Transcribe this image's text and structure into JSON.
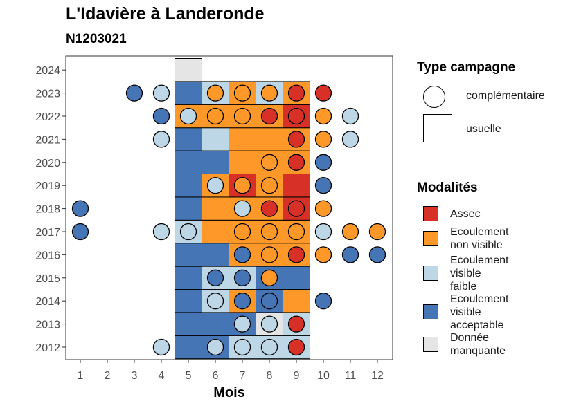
{
  "header": {
    "title": "L'Idavière à Landeronde",
    "subtitle": "N1203021"
  },
  "chart_data": {
    "type": "heatmap",
    "xlabel": "Mois",
    "ylabel": "",
    "x": [
      1,
      2,
      3,
      4,
      5,
      6,
      7,
      8,
      9,
      10,
      11,
      12
    ],
    "y": [
      2012,
      2013,
      2014,
      2015,
      2016,
      2017,
      2018,
      2019,
      2020,
      2021,
      2022,
      2023,
      2024
    ],
    "colors": {
      "assec": "#D73027",
      "ecoulement_non_visible": "#FE9929",
      "ecoulement_visible_faible": "#BDD7E7",
      "ecoulement_visible_acceptable": "#4575B4",
      "donnee_manquante": "#E5E5E5"
    },
    "usuelle": [
      {
        "year": 2012,
        "month": 5,
        "value": "ecoulement_visible_acceptable"
      },
      {
        "year": 2012,
        "month": 6,
        "value": "ecoulement_visible_acceptable"
      },
      {
        "year": 2012,
        "month": 7,
        "value": "ecoulement_visible_faible"
      },
      {
        "year": 2012,
        "month": 8,
        "value": "ecoulement_visible_faible"
      },
      {
        "year": 2012,
        "month": 9,
        "value": "ecoulement_visible_faible"
      },
      {
        "year": 2013,
        "month": 5,
        "value": "ecoulement_visible_acceptable"
      },
      {
        "year": 2013,
        "month": 6,
        "value": "ecoulement_visible_acceptable"
      },
      {
        "year": 2013,
        "month": 7,
        "value": "ecoulement_visible_acceptable"
      },
      {
        "year": 2013,
        "month": 8,
        "value": "donnee_manquante"
      },
      {
        "year": 2013,
        "month": 9,
        "value": "ecoulement_visible_faible"
      },
      {
        "year": 2014,
        "month": 5,
        "value": "ecoulement_visible_acceptable"
      },
      {
        "year": 2014,
        "month": 6,
        "value": "ecoulement_visible_faible"
      },
      {
        "year": 2014,
        "month": 7,
        "value": "ecoulement_non_visible"
      },
      {
        "year": 2014,
        "month": 8,
        "value": "ecoulement_visible_acceptable"
      },
      {
        "year": 2014,
        "month": 9,
        "value": "ecoulement_non_visible"
      },
      {
        "year": 2015,
        "month": 5,
        "value": "ecoulement_visible_acceptable"
      },
      {
        "year": 2015,
        "month": 6,
        "value": "ecoulement_visible_faible"
      },
      {
        "year": 2015,
        "month": 7,
        "value": "ecoulement_visible_faible"
      },
      {
        "year": 2015,
        "month": 8,
        "value": "ecoulement_visible_acceptable"
      },
      {
        "year": 2015,
        "month": 9,
        "value": "ecoulement_visible_acceptable"
      },
      {
        "year": 2016,
        "month": 5,
        "value": "ecoulement_visible_acceptable"
      },
      {
        "year": 2016,
        "month": 6,
        "value": "ecoulement_visible_acceptable"
      },
      {
        "year": 2016,
        "month": 7,
        "value": "ecoulement_non_visible"
      },
      {
        "year": 2016,
        "month": 8,
        "value": "ecoulement_non_visible"
      },
      {
        "year": 2016,
        "month": 9,
        "value": "ecoulement_non_visible"
      },
      {
        "year": 2017,
        "month": 5,
        "value": "ecoulement_visible_faible"
      },
      {
        "year": 2017,
        "month": 6,
        "value": "ecoulement_non_visible"
      },
      {
        "year": 2017,
        "month": 7,
        "value": "ecoulement_non_visible"
      },
      {
        "year": 2017,
        "month": 8,
        "value": "ecoulement_non_visible"
      },
      {
        "year": 2017,
        "month": 9,
        "value": "ecoulement_non_visible"
      },
      {
        "year": 2018,
        "month": 5,
        "value": "ecoulement_visible_acceptable"
      },
      {
        "year": 2018,
        "month": 6,
        "value": "ecoulement_non_visible"
      },
      {
        "year": 2018,
        "month": 7,
        "value": "ecoulement_non_visible"
      },
      {
        "year": 2018,
        "month": 8,
        "value": "ecoulement_non_visible"
      },
      {
        "year": 2018,
        "month": 9,
        "value": "assec"
      },
      {
        "year": 2019,
        "month": 5,
        "value": "ecoulement_visible_acceptable"
      },
      {
        "year": 2019,
        "month": 6,
        "value": "ecoulement_non_visible"
      },
      {
        "year": 2019,
        "month": 7,
        "value": "assec"
      },
      {
        "year": 2019,
        "month": 8,
        "value": "ecoulement_non_visible"
      },
      {
        "year": 2019,
        "month": 9,
        "value": "assec"
      },
      {
        "year": 2020,
        "month": 5,
        "value": "ecoulement_visible_acceptable"
      },
      {
        "year": 2020,
        "month": 6,
        "value": "ecoulement_visible_acceptable"
      },
      {
        "year": 2020,
        "month": 7,
        "value": "ecoulement_non_visible"
      },
      {
        "year": 2020,
        "month": 8,
        "value": "ecoulement_non_visible"
      },
      {
        "year": 2020,
        "month": 9,
        "value": "ecoulement_non_visible"
      },
      {
        "year": 2021,
        "month": 5,
        "value": "ecoulement_visible_acceptable"
      },
      {
        "year": 2021,
        "month": 6,
        "value": "ecoulement_visible_faible"
      },
      {
        "year": 2021,
        "month": 7,
        "value": "ecoulement_non_visible"
      },
      {
        "year": 2021,
        "month": 8,
        "value": "ecoulement_non_visible"
      },
      {
        "year": 2021,
        "month": 9,
        "value": "ecoulement_non_visible"
      },
      {
        "year": 2022,
        "month": 5,
        "value": "ecoulement_non_visible"
      },
      {
        "year": 2022,
        "month": 6,
        "value": "ecoulement_non_visible"
      },
      {
        "year": 2022,
        "month": 7,
        "value": "ecoulement_non_visible"
      },
      {
        "year": 2022,
        "month": 8,
        "value": "ecoulement_non_visible"
      },
      {
        "year": 2022,
        "month": 9,
        "value": "assec"
      },
      {
        "year": 2023,
        "month": 5,
        "value": "ecoulement_visible_acceptable"
      },
      {
        "year": 2023,
        "month": 6,
        "value": "ecoulement_visible_faible"
      },
      {
        "year": 2023,
        "month": 7,
        "value": "ecoulement_non_visible"
      },
      {
        "year": 2023,
        "month": 8,
        "value": "ecoulement_visible_faible"
      },
      {
        "year": 2023,
        "month": 9,
        "value": "ecoulement_non_visible"
      },
      {
        "year": 2024,
        "month": 5,
        "value": "donnee_manquante"
      }
    ],
    "complementaire": [
      {
        "year": 2012,
        "month": 4,
        "value": "ecoulement_visible_faible"
      },
      {
        "year": 2012,
        "month": 6,
        "value": "ecoulement_visible_faible"
      },
      {
        "year": 2012,
        "month": 7,
        "value": "ecoulement_visible_faible"
      },
      {
        "year": 2012,
        "month": 8,
        "value": "ecoulement_visible_faible"
      },
      {
        "year": 2012,
        "month": 9,
        "value": "assec"
      },
      {
        "year": 2013,
        "month": 7,
        "value": "ecoulement_visible_faible"
      },
      {
        "year": 2013,
        "month": 8,
        "value": "ecoulement_visible_faible"
      },
      {
        "year": 2013,
        "month": 9,
        "value": "assec"
      },
      {
        "year": 2014,
        "month": 6,
        "value": "ecoulement_visible_faible"
      },
      {
        "year": 2014,
        "month": 7,
        "value": "ecoulement_visible_acceptable"
      },
      {
        "year": 2014,
        "month": 8,
        "value": "ecoulement_visible_acceptable"
      },
      {
        "year": 2014,
        "month": 10,
        "value": "ecoulement_visible_acceptable"
      },
      {
        "year": 2015,
        "month": 6,
        "value": "ecoulement_visible_acceptable"
      },
      {
        "year": 2015,
        "month": 7,
        "value": "ecoulement_visible_acceptable"
      },
      {
        "year": 2015,
        "month": 8,
        "value": "ecoulement_non_visible"
      },
      {
        "year": 2016,
        "month": 7,
        "value": "ecoulement_visible_acceptable"
      },
      {
        "year": 2016,
        "month": 8,
        "value": "ecoulement_non_visible"
      },
      {
        "year": 2016,
        "month": 9,
        "value": "assec"
      },
      {
        "year": 2016,
        "month": 10,
        "value": "ecoulement_non_visible"
      },
      {
        "year": 2016,
        "month": 11,
        "value": "ecoulement_visible_acceptable"
      },
      {
        "year": 2016,
        "month": 12,
        "value": "ecoulement_visible_acceptable"
      },
      {
        "year": 2017,
        "month": 1,
        "value": "ecoulement_visible_acceptable"
      },
      {
        "year": 2017,
        "month": 4,
        "value": "ecoulement_visible_faible"
      },
      {
        "year": 2017,
        "month": 5,
        "value": "ecoulement_visible_faible"
      },
      {
        "year": 2017,
        "month": 7,
        "value": "ecoulement_non_visible"
      },
      {
        "year": 2017,
        "month": 8,
        "value": "ecoulement_non_visible"
      },
      {
        "year": 2017,
        "month": 9,
        "value": "ecoulement_non_visible"
      },
      {
        "year": 2017,
        "month": 10,
        "value": "ecoulement_visible_faible"
      },
      {
        "year": 2017,
        "month": 11,
        "value": "ecoulement_non_visible"
      },
      {
        "year": 2017,
        "month": 12,
        "value": "ecoulement_non_visible"
      },
      {
        "year": 2018,
        "month": 1,
        "value": "ecoulement_visible_acceptable"
      },
      {
        "year": 2018,
        "month": 7,
        "value": "ecoulement_visible_faible"
      },
      {
        "year": 2018,
        "month": 8,
        "value": "assec"
      },
      {
        "year": 2018,
        "month": 9,
        "value": "assec"
      },
      {
        "year": 2018,
        "month": 10,
        "value": "ecoulement_non_visible"
      },
      {
        "year": 2019,
        "month": 6,
        "value": "ecoulement_visible_faible"
      },
      {
        "year": 2019,
        "month": 7,
        "value": "ecoulement_non_visible"
      },
      {
        "year": 2019,
        "month": 8,
        "value": "ecoulement_non_visible"
      },
      {
        "year": 2019,
        "month": 10,
        "value": "ecoulement_visible_acceptable"
      },
      {
        "year": 2020,
        "month": 8,
        "value": "ecoulement_non_visible"
      },
      {
        "year": 2020,
        "month": 9,
        "value": "assec"
      },
      {
        "year": 2020,
        "month": 10,
        "value": "ecoulement_visible_acceptable"
      },
      {
        "year": 2021,
        "month": 4,
        "value": "ecoulement_visible_faible"
      },
      {
        "year": 2021,
        "month": 9,
        "value": "assec"
      },
      {
        "year": 2021,
        "month": 10,
        "value": "ecoulement_non_visible"
      },
      {
        "year": 2021,
        "month": 11,
        "value": "ecoulement_visible_faible"
      },
      {
        "year": 2022,
        "month": 4,
        "value": "ecoulement_visible_acceptable"
      },
      {
        "year": 2022,
        "month": 5,
        "value": "ecoulement_visible_faible"
      },
      {
        "year": 2022,
        "month": 6,
        "value": "ecoulement_non_visible"
      },
      {
        "year": 2022,
        "month": 7,
        "value": "ecoulement_non_visible"
      },
      {
        "year": 2022,
        "month": 8,
        "value": "assec"
      },
      {
        "year": 2022,
        "month": 9,
        "value": "assec"
      },
      {
        "year": 2022,
        "month": 10,
        "value": "ecoulement_non_visible"
      },
      {
        "year": 2022,
        "month": 11,
        "value": "ecoulement_visible_faible"
      },
      {
        "year": 2023,
        "month": 3,
        "value": "ecoulement_visible_acceptable"
      },
      {
        "year": 2023,
        "month": 4,
        "value": "ecoulement_visible_faible"
      },
      {
        "year": 2023,
        "month": 6,
        "value": "ecoulement_non_visible"
      },
      {
        "year": 2023,
        "month": 7,
        "value": "ecoulement_non_visible"
      },
      {
        "year": 2023,
        "month": 8,
        "value": "ecoulement_non_visible"
      },
      {
        "year": 2023,
        "month": 9,
        "value": "assec"
      },
      {
        "year": 2023,
        "month": 10,
        "value": "assec"
      }
    ]
  },
  "legend": {
    "type_title": "Type campagne",
    "type_items": [
      {
        "shape": "circle",
        "label": "complémentaire"
      },
      {
        "shape": "square",
        "label": "usuelle"
      }
    ],
    "mod_title": "Modalités",
    "mod_items": [
      {
        "key": "assec",
        "lines": [
          "Assec"
        ]
      },
      {
        "key": "ecoulement_non_visible",
        "lines": [
          "Ecoulement",
          "non visible"
        ]
      },
      {
        "key": "ecoulement_visible_faible",
        "lines": [
          "Ecoulement",
          "visible",
          "faible"
        ]
      },
      {
        "key": "ecoulement_visible_acceptable",
        "lines": [
          "Ecoulement",
          "visible",
          "acceptable"
        ]
      },
      {
        "key": "donnee_manquante",
        "lines": [
          "Donnée",
          "manquante"
        ]
      }
    ]
  }
}
